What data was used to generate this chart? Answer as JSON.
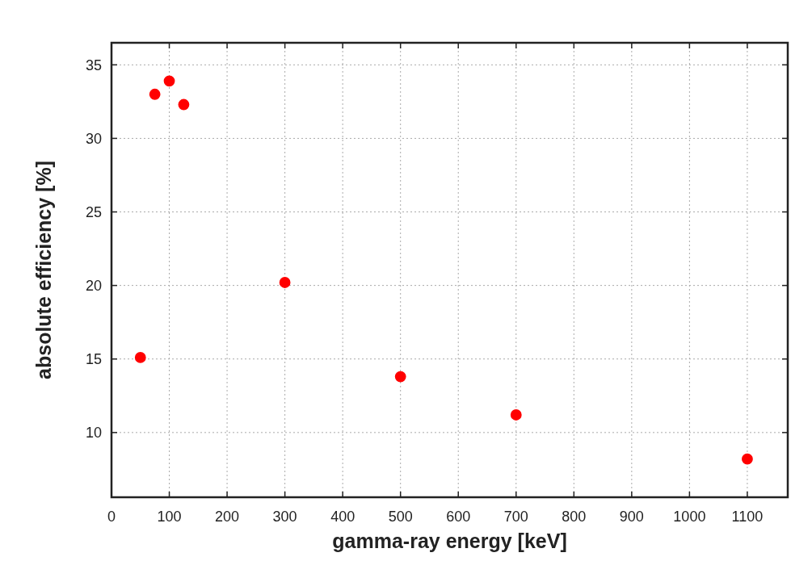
{
  "chart_data": {
    "type": "scatter",
    "xlabel": "gamma-ray energy [keV]",
    "ylabel": "absolute efficiency [%]",
    "x": [
      50,
      75,
      100,
      125,
      300,
      500,
      700,
      1100
    ],
    "values": [
      15.1,
      33.0,
      33.9,
      32.3,
      20.2,
      13.8,
      11.2,
      8.2
    ],
    "color": "#ff0000",
    "marker": "circle",
    "xlim": [
      0,
      1170
    ],
    "xticks": [
      0,
      100,
      200,
      300,
      400,
      500,
      600,
      700,
      800,
      900,
      1000,
      1100
    ],
    "ylim": [
      5.6,
      36.5
    ],
    "yticks": [
      10,
      15,
      20,
      25,
      30,
      35
    ],
    "grid": true
  }
}
